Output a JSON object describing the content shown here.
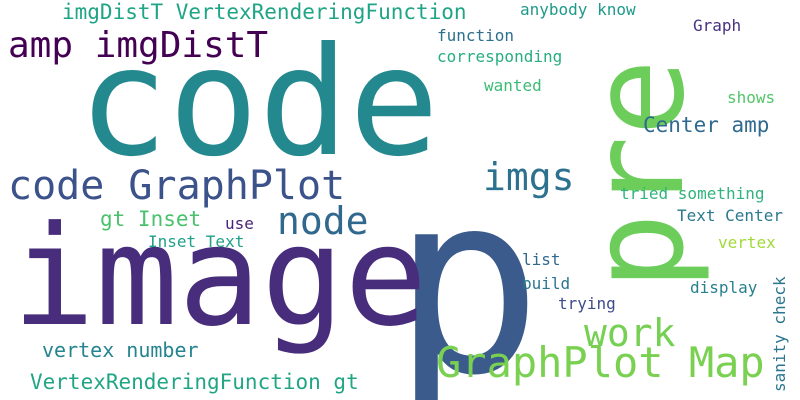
{
  "words": [
    {
      "text": "code",
      "color": "#23898e"
    },
    {
      "text": "p",
      "color": "#3b5b8c"
    },
    {
      "text": "image",
      "color": "#472d7b"
    },
    {
      "text": "pre",
      "color": "#6ccd5a"
    },
    {
      "text": "amp imgDistT",
      "color": "#440154"
    },
    {
      "text": "code GraphPlot",
      "color": "#3b528b"
    },
    {
      "text": "GraphPlot Map",
      "color": "#7ad151"
    },
    {
      "text": "imgs",
      "color": "#2c728e"
    },
    {
      "text": "node",
      "color": "#31688e"
    },
    {
      "text": "work",
      "color": "#75d054"
    },
    {
      "text": "imgDistT VertexRenderingFunction",
      "color": "#20a486"
    },
    {
      "text": "VertexRenderingFunction gt",
      "color": "#21a585"
    },
    {
      "text": "vertex number",
      "color": "#25848e"
    },
    {
      "text": "Center amp",
      "color": "#306a8e"
    },
    {
      "text": "gt Inset",
      "color": "#4ac16d"
    },
    {
      "text": "anybody know",
      "color": "#1f998a"
    },
    {
      "text": "function",
      "color": "#2d708e"
    },
    {
      "text": "corresponding",
      "color": "#28ae80"
    },
    {
      "text": "wanted",
      "color": "#3bbb75"
    },
    {
      "text": "Graph",
      "color": "#46327e"
    },
    {
      "text": "shows",
      "color": "#52c569"
    },
    {
      "text": "tried something",
      "color": "#2fb47c"
    },
    {
      "text": "Text Center",
      "color": "#2a788e"
    },
    {
      "text": "use",
      "color": "#482475"
    },
    {
      "text": "Inset Text",
      "color": "#1fa088"
    },
    {
      "text": "vertex",
      "color": "#a0da39"
    },
    {
      "text": "list",
      "color": "#30698e"
    },
    {
      "text": "build",
      "color": "#2a768e"
    },
    {
      "text": "display",
      "color": "#27808e"
    },
    {
      "text": "trying",
      "color": "#3e4c8a"
    },
    {
      "text": "sanity check",
      "color": "#2b758e"
    }
  ]
}
